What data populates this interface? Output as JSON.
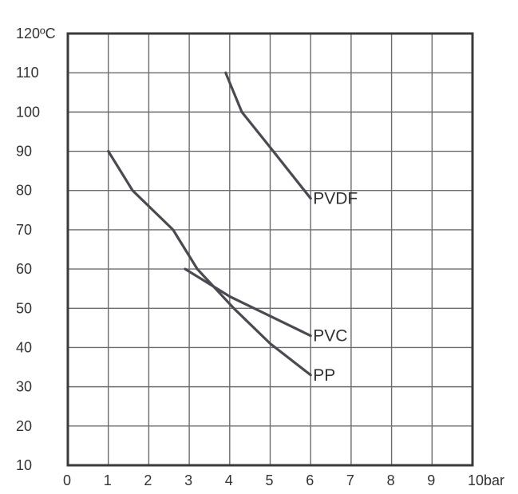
{
  "chart_data": {
    "type": "line",
    "title": "",
    "xlabel": "",
    "ylabel": "",
    "xlim": [
      0,
      10
    ],
    "ylim": [
      10,
      120
    ],
    "grid": true,
    "x_ticks": [
      {
        "value": 0,
        "label": "0"
      },
      {
        "value": 1,
        "label": "1"
      },
      {
        "value": 2,
        "label": "2"
      },
      {
        "value": 3,
        "label": "3"
      },
      {
        "value": 4,
        "label": "4"
      },
      {
        "value": 5,
        "label": "5"
      },
      {
        "value": 6,
        "label": "6"
      },
      {
        "value": 7,
        "label": "7"
      },
      {
        "value": 8,
        "label": "8"
      },
      {
        "value": 9,
        "label": "9"
      },
      {
        "value": 10,
        "label": "10bar"
      }
    ],
    "y_ticks": [
      {
        "value": 10,
        "label": "10"
      },
      {
        "value": 20,
        "label": "20"
      },
      {
        "value": 30,
        "label": "30"
      },
      {
        "value": 40,
        "label": "40"
      },
      {
        "value": 50,
        "label": "50"
      },
      {
        "value": 60,
        "label": "60"
      },
      {
        "value": 70,
        "label": "70"
      },
      {
        "value": 80,
        "label": "80"
      },
      {
        "value": 90,
        "label": "90"
      },
      {
        "value": 100,
        "label": "100"
      },
      {
        "value": 110,
        "label": "110"
      },
      {
        "value": 120,
        "label": "120ºC"
      }
    ],
    "series": [
      {
        "name": "PVDF",
        "color": "#4a4a52",
        "points": [
          [
            3.9,
            110
          ],
          [
            4.3,
            100
          ],
          [
            5.0,
            91
          ],
          [
            6.0,
            78
          ]
        ]
      },
      {
        "name": "PP",
        "color": "#4a4a52",
        "points": [
          [
            1.0,
            90
          ],
          [
            1.6,
            80
          ],
          [
            2.6,
            70
          ],
          [
            3.2,
            60
          ],
          [
            4.1,
            50
          ],
          [
            5.0,
            41
          ],
          [
            6.0,
            33
          ]
        ]
      },
      {
        "name": "PVC",
        "color": "#4a4a52",
        "points": [
          [
            2.9,
            60
          ],
          [
            4.0,
            53
          ],
          [
            5.0,
            48
          ],
          [
            6.0,
            43
          ]
        ]
      }
    ]
  }
}
